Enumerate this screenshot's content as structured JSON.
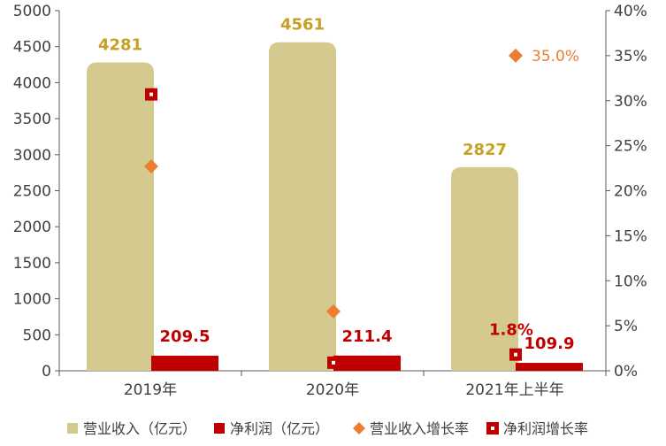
{
  "chart_data": {
    "type": "bar",
    "categories": [
      "2019年",
      "2020年",
      "2021年上半年"
    ],
    "series": [
      {
        "name": "营业收入（亿元）",
        "kind": "bar",
        "axis": "left",
        "color": "#D4C98E",
        "values": [
          4281,
          4561,
          2827
        ],
        "labels": [
          "4281",
          "4561",
          "2827"
        ],
        "label_color": "#C7A024"
      },
      {
        "name": "净利润（亿元）",
        "kind": "bar",
        "axis": "left",
        "color": "#C00000",
        "values": [
          209.5,
          211.4,
          109.9
        ],
        "labels": [
          "209.5",
          "211.4",
          "109.9"
        ],
        "label_color": "#C00000"
      },
      {
        "name": "营业收入增长率",
        "kind": "diamond",
        "axis": "right",
        "color": "#ED7D31",
        "values": [
          0.227,
          0.066,
          0.35
        ],
        "labels": [
          "",
          "",
          "35.0%"
        ],
        "label_color": "#ED7D31"
      },
      {
        "name": "净利润增长率",
        "kind": "square",
        "axis": "right",
        "color": "#C00000",
        "values": [
          0.307,
          0.009,
          0.018
        ],
        "labels": [
          "",
          "",
          "1.8%"
        ],
        "label_color": "#C00000"
      }
    ],
    "left_axis": {
      "min": 0,
      "max": 5000,
      "step": 500,
      "ticks": [
        "0",
        "500",
        "1000",
        "1500",
        "2000",
        "2500",
        "3000",
        "3500",
        "4000",
        "4500",
        "5000"
      ]
    },
    "right_axis": {
      "min": 0,
      "max": 0.4,
      "step": 0.05,
      "ticks": [
        "0%",
        "5%",
        "10%",
        "15%",
        "20%",
        "25%",
        "30%",
        "35%",
        "40%"
      ]
    },
    "title": "",
    "xlabel": "",
    "ylabel": "",
    "grid": false,
    "legend_position": "bottom",
    "legend": [
      "营业收入（亿元）",
      "净利润（亿元）",
      "营业收入增长率",
      "净利润增长率"
    ]
  }
}
